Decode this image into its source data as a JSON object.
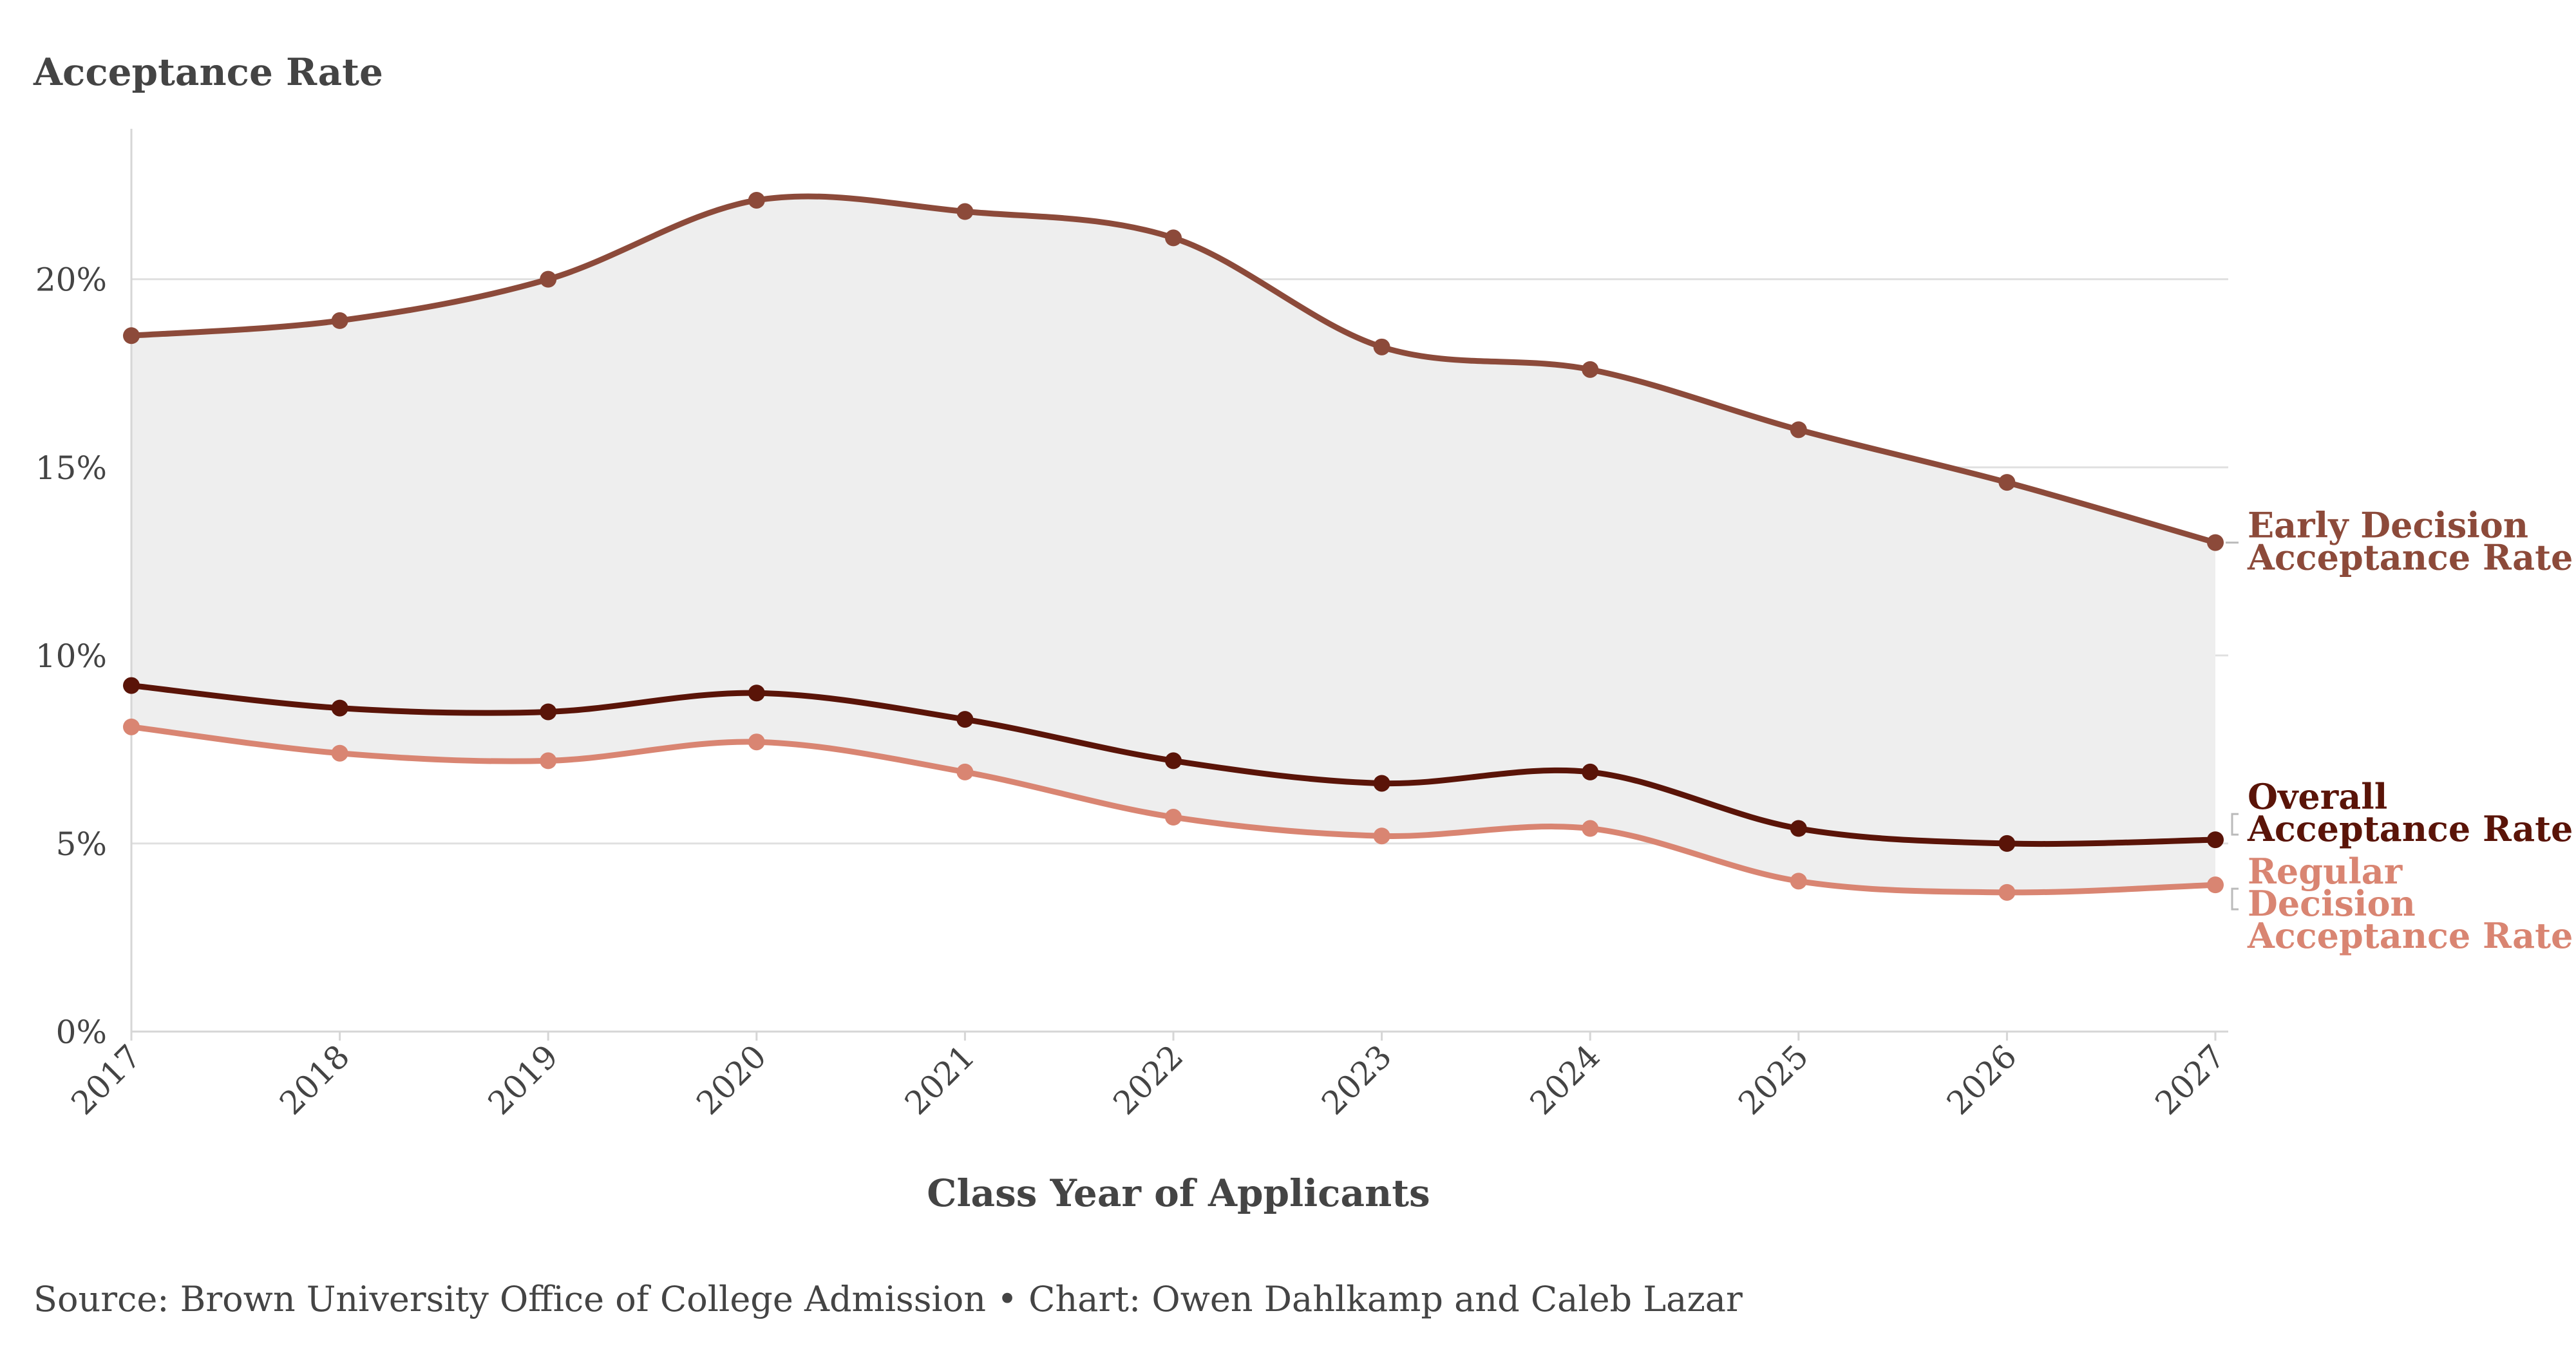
{
  "chart_data": {
    "type": "line",
    "ylabel": "Acceptance Rate",
    "xlabel": "Class Year of Applicants",
    "source": "Source: Brown University Office of College Admission • Chart: Owen Dahlkamp and Caleb Lazar",
    "x": [
      "2017",
      "2018",
      "2019",
      "2020",
      "2021",
      "2022",
      "2023",
      "2024",
      "2025",
      "2026",
      "2027"
    ],
    "ylim": [
      0,
      24
    ],
    "y_ticks": [
      0,
      5,
      10,
      15,
      20
    ],
    "y_tick_labels": [
      "0%",
      "5%",
      "10%",
      "15%",
      "20%"
    ],
    "grid": "horizontal",
    "shaded_band": "between Early Decision Acceptance Rate and Regular Decision Acceptance Rate",
    "series": [
      {
        "name": "Early Decision Acceptance Rate",
        "label_lines": [
          "Early Decision",
          "Acceptance Rate"
        ],
        "color": "#8c4a3a",
        "values": [
          18.5,
          18.9,
          20.0,
          22.1,
          21.8,
          21.1,
          18.2,
          17.6,
          16.0,
          14.6,
          13.0
        ]
      },
      {
        "name": "Overall Acceptance Rate",
        "label_lines": [
          "Overall",
          "Acceptance Rate"
        ],
        "color": "#5a1408",
        "values": [
          9.2,
          8.6,
          8.5,
          9.0,
          8.3,
          7.2,
          6.6,
          6.9,
          5.4,
          5.0,
          5.1
        ]
      },
      {
        "name": "Regular Decision Acceptance Rate",
        "label_lines": [
          "Regular",
          "Decision",
          "Acceptance Rate"
        ],
        "color": "#d98572",
        "values": [
          8.1,
          7.4,
          7.2,
          7.7,
          6.9,
          5.7,
          5.2,
          5.4,
          4.0,
          3.7,
          3.9
        ]
      }
    ],
    "colors": {
      "band_fill": "#eeeeee",
      "grid": "#e0e0e0",
      "axis": "#d6d6d6",
      "text": "#444444"
    }
  }
}
